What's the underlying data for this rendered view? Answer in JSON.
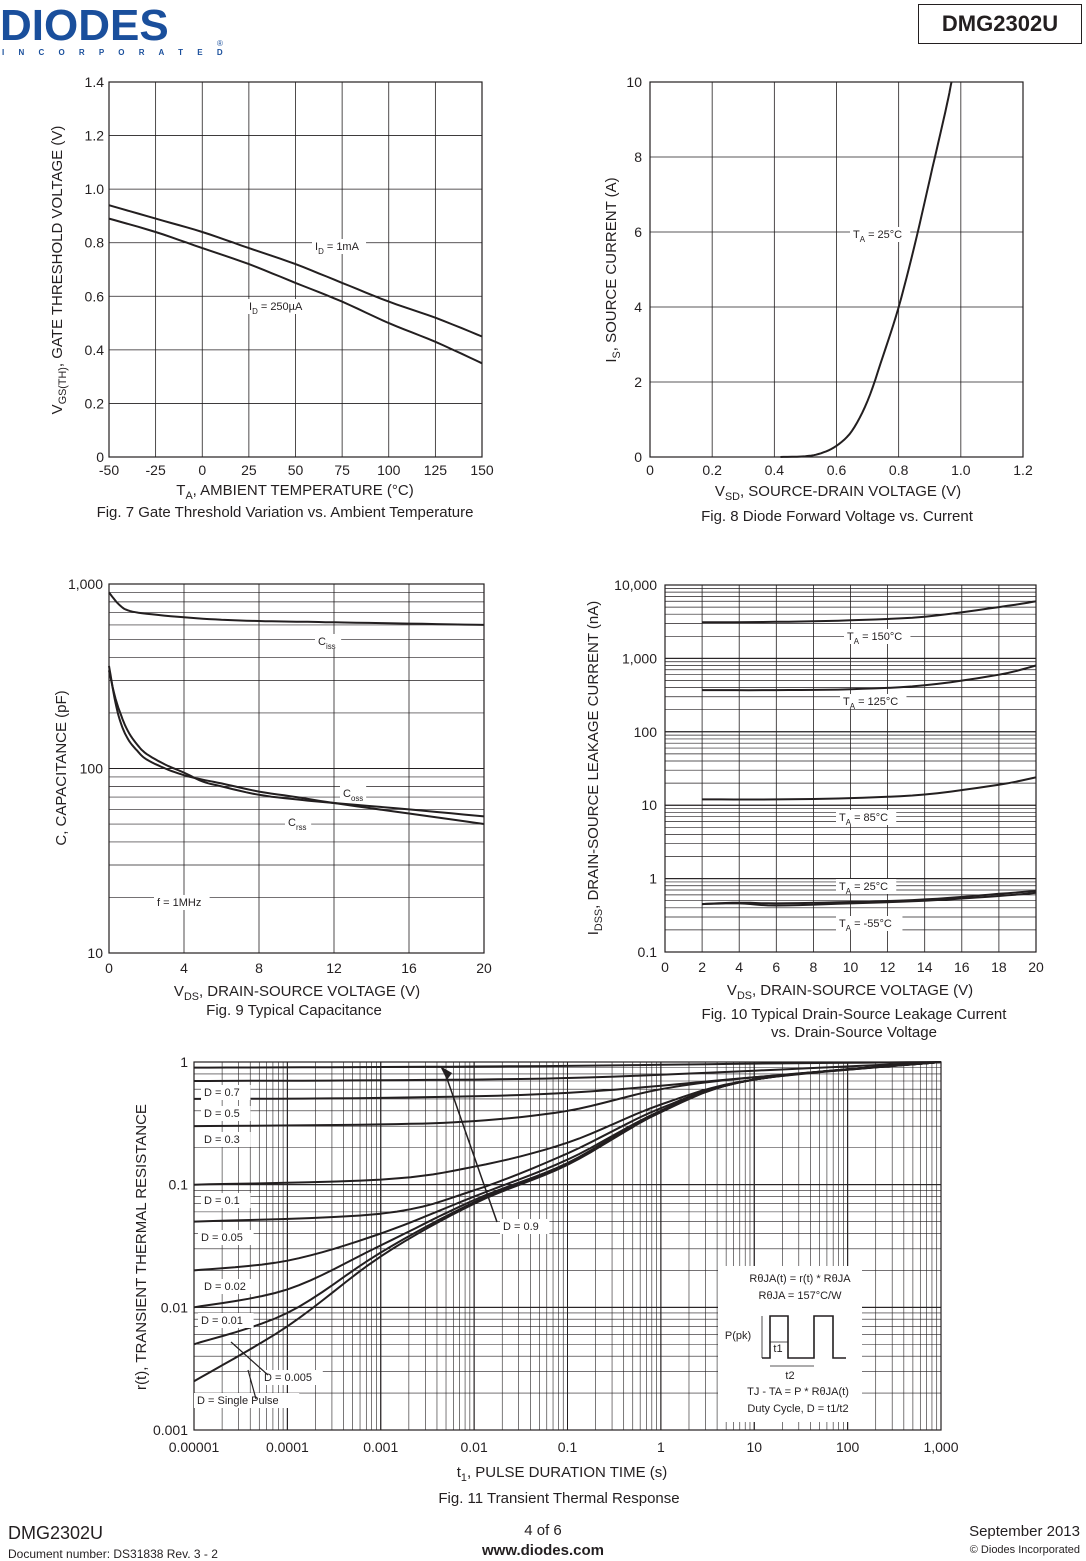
{
  "header": {
    "logo_text": "DIODES",
    "logo_sub": "I N C O R P O R A T E D",
    "logo_reg": "®",
    "part_number": "DMG2302U"
  },
  "footer": {
    "part": "DMG2302U",
    "doc_number": "Document number: DS31838 Rev. 3 - 2",
    "page": "4 of 6",
    "website": "www.diodes.com",
    "date": "September 2013",
    "copyright": "© Diodes Incorporated"
  },
  "chart_data": [
    {
      "id": "fig7",
      "type": "line",
      "caption": "Fig. 7 Gate Threshold Variation vs. Ambient Temperature",
      "xlabel": "Tₐ, AMBIENT TEMPERATURE (°C)",
      "xlabel_main": "T",
      "xlabel_sub": "A",
      "xlabel_rest": ", AMBIENT TEMPERATURE (°C)",
      "ylabel_main": "V",
      "ylabel_sub": "GS(TH)",
      "ylabel_rest": ", GATE THRESHOLD VOLTAGE (V)",
      "xlim": [
        -50,
        150
      ],
      "ylim": [
        0,
        1.4
      ],
      "xticks": [
        -50,
        -25,
        0,
        25,
        50,
        75,
        100,
        125,
        150
      ],
      "xtick_labels": [
        "-50",
        "-25",
        "0",
        "25",
        "50",
        "75",
        "100",
        "125",
        "150"
      ],
      "yticks": [
        0,
        0.2,
        0.4,
        0.6,
        0.8,
        1.0,
        1.2,
        1.4
      ],
      "ytick_labels": [
        "0",
        "0.2",
        "0.4",
        "0.6",
        "0.8",
        "1.0",
        "1.2",
        "1.4"
      ],
      "series": [
        {
          "name": "ID = 1mA",
          "label_main": "I",
          "label_sub": "D",
          "label_rest": " = 1mA",
          "x": [
            -50,
            -25,
            0,
            25,
            50,
            75,
            100,
            125,
            150
          ],
          "y": [
            0.94,
            0.89,
            0.84,
            0.78,
            0.72,
            0.65,
            0.58,
            0.52,
            0.45
          ]
        },
        {
          "name": "ID = 250µA",
          "label_main": "I",
          "label_sub": "D",
          "label_rest": " = 250µA",
          "x": [
            -50,
            -25,
            0,
            25,
            50,
            75,
            100,
            125,
            150
          ],
          "y": [
            0.89,
            0.84,
            0.78,
            0.72,
            0.65,
            0.58,
            0.5,
            0.43,
            0.35
          ]
        }
      ]
    },
    {
      "id": "fig8",
      "type": "line",
      "caption": "Fig. 8 Diode Forward Voltage vs. Current",
      "xlabel_main": "V",
      "xlabel_sub": "SD",
      "xlabel_rest": ", SOURCE-DRAIN VOLTAGE (V)",
      "ylabel_main": "I",
      "ylabel_sub": "S",
      "ylabel_rest": ", SOURCE CURRENT (A)",
      "xlim": [
        0,
        1.2
      ],
      "ylim": [
        0,
        10
      ],
      "xticks": [
        0,
        0.2,
        0.4,
        0.6,
        0.8,
        1.0,
        1.2
      ],
      "xtick_labels": [
        "0",
        "0.2",
        "0.4",
        "0.6",
        "0.8",
        "1.0",
        "1.2"
      ],
      "yticks": [
        0,
        2,
        4,
        6,
        8,
        10
      ],
      "ytick_labels": [
        "0",
        "2",
        "4",
        "6",
        "8",
        "10"
      ],
      "series": [
        {
          "name": "TA = 25°C",
          "label_main": "T",
          "label_sub": "A",
          "label_rest": " = 25°C",
          "x": [
            0.42,
            0.5,
            0.55,
            0.6,
            0.65,
            0.7,
            0.75,
            0.8,
            0.85,
            0.9,
            0.95,
            0.97
          ],
          "y": [
            0,
            0.02,
            0.1,
            0.3,
            0.7,
            1.5,
            2.7,
            4.0,
            5.6,
            7.4,
            9.2,
            10
          ]
        }
      ]
    },
    {
      "id": "fig9",
      "type": "line",
      "caption": "Fig. 9 Typical Capacitance",
      "xlabel_main": "V",
      "xlabel_sub": "DS",
      "xlabel_rest": ", DRAIN-SOURCE VOLTAGE (V)",
      "ylabel": "C, CAPACITANCE (pF)",
      "yscale": "log",
      "xlim": [
        0,
        20
      ],
      "ylim": [
        10,
        1000
      ],
      "xticks": [
        0,
        4,
        8,
        12,
        16,
        20
      ],
      "xtick_labels": [
        "0",
        "4",
        "8",
        "12",
        "16",
        "20"
      ],
      "ytick_labels": [
        "10",
        "100",
        "1,000"
      ],
      "note": "f = 1MHz",
      "series": [
        {
          "name": "Ciss",
          "label_main": "C",
          "label_sub": "iss",
          "x": [
            0,
            0.5,
            1,
            2,
            4,
            6,
            8,
            10,
            12,
            16,
            20
          ],
          "y": [
            900,
            780,
            720,
            690,
            660,
            640,
            630,
            625,
            620,
            610,
            600
          ]
        },
        {
          "name": "Coss",
          "label_main": "C",
          "label_sub": "oss",
          "x": [
            0,
            0.3,
            0.6,
            1,
            1.5,
            2,
            3,
            4,
            5,
            6,
            8,
            10,
            12,
            16,
            20
          ],
          "y": [
            340,
            250,
            200,
            160,
            135,
            120,
            105,
            95,
            85,
            80,
            72,
            68,
            65,
            60,
            55
          ]
        },
        {
          "name": "Crss",
          "label_main": "C",
          "label_sub": "rss",
          "x": [
            0,
            0.3,
            0.6,
            1,
            1.5,
            2,
            3,
            4,
            5,
            6,
            8,
            10,
            12,
            16,
            20
          ],
          "y": [
            360,
            240,
            180,
            145,
            125,
            112,
            100,
            92,
            87,
            83,
            75,
            70,
            65,
            57,
            50
          ]
        }
      ]
    },
    {
      "id": "fig10",
      "type": "line",
      "caption_line1": "Fig. 10 Typical Drain-Source Leakage Current",
      "caption_line2": "vs. Drain-Source Voltage",
      "xlabel_main": "V",
      "xlabel_sub": "DS",
      "xlabel_rest": ", DRAIN-SOURCE VOLTAGE (V)",
      "ylabel_main": "I",
      "ylabel_sub": "DSS",
      "ylabel_rest": ", DRAIN-SOURCE LEAKAGE CURRENT (nA)",
      "yscale": "log",
      "xlim": [
        0,
        20
      ],
      "ylim": [
        0.1,
        10000
      ],
      "xticks": [
        0,
        2,
        4,
        6,
        8,
        10,
        12,
        14,
        16,
        18,
        20
      ],
      "xtick_labels": [
        "0",
        "2",
        "4",
        "6",
        "8",
        "10",
        "12",
        "14",
        "16",
        "18",
        "20"
      ],
      "ytick_labels": [
        "0.1",
        "1",
        "10",
        "100",
        "1,000",
        "10,000"
      ],
      "series": [
        {
          "name": "TA = 150°C",
          "label_main": "T",
          "label_sub": "A",
          "label_rest": " = 150°C",
          "x": [
            2,
            6,
            10,
            14,
            18,
            20
          ],
          "y": [
            3100,
            3150,
            3300,
            3700,
            5000,
            6000
          ]
        },
        {
          "name": "TA = 125°C",
          "label_main": "T",
          "label_sub": "A",
          "label_rest": " = 125°C",
          "x": [
            2,
            6,
            10,
            14,
            18,
            20
          ],
          "y": [
            370,
            370,
            380,
            430,
            600,
            800
          ]
        },
        {
          "name": "TA = 85°C",
          "label_main": "T",
          "label_sub": "A",
          "label_rest": " = 85°C",
          "x": [
            2,
            6,
            10,
            14,
            18,
            20
          ],
          "y": [
            12,
            12,
            12.5,
            14,
            19,
            24
          ]
        },
        {
          "name": "TA = 25°C",
          "label_main": "T",
          "label_sub": "A",
          "label_rest": " = 25°C",
          "x": [
            2,
            4,
            6,
            10,
            14,
            18,
            20
          ],
          "y": [
            0.45,
            0.47,
            0.46,
            0.48,
            0.52,
            0.62,
            0.68
          ]
        },
        {
          "name": "TA = -55°C",
          "label_main": "T",
          "label_sub": "A",
          "label_rest": " = -55°C",
          "x": [
            2,
            4,
            6,
            10,
            14,
            18,
            20
          ],
          "y": [
            0.45,
            0.46,
            0.43,
            0.46,
            0.5,
            0.58,
            0.64
          ]
        }
      ]
    },
    {
      "id": "fig11",
      "type": "line",
      "caption": "Fig. 11 Transient Thermal Response",
      "xlabel_main": "t",
      "xlabel_sub": "1",
      "xlabel_rest": ", PULSE DURATION TIME (s)",
      "ylabel": "r(t), TRANSIENT THERMAL RESISTANCE",
      "xscale": "log",
      "yscale": "log",
      "xlim": [
        1e-05,
        1000
      ],
      "ylim": [
        0.001,
        1
      ],
      "xtick_labels": [
        "0.00001",
        "0.0001",
        "0.001",
        "0.01",
        "0.1",
        "1",
        "10",
        "100",
        "1,000"
      ],
      "ytick_labels": [
        "0.001",
        "0.01",
        "0.1",
        "1"
      ],
      "annotations": {
        "formula1": "RθJA(t) = r(t) * RθJA",
        "formula2": "RθJA = 157°C/W",
        "ppk": "P(pk)",
        "t1": "t1",
        "t2": "t2",
        "formula3": "TJ - TA = P * RθJA(t)",
        "formula4": "Duty Cycle, D = t1/t2"
      },
      "series": [
        {
          "name": "D = 0.9",
          "D": 0.9,
          "x": [
            1e-05,
            0.001,
            0.1,
            10,
            1000
          ],
          "y": [
            0.9,
            0.91,
            0.93,
            0.97,
            1
          ]
        },
        {
          "name": "D = 0.7",
          "D": 0.7,
          "x": [
            1e-05,
            0.001,
            0.1,
            10,
            1000
          ],
          "y": [
            0.7,
            0.71,
            0.74,
            0.85,
            1
          ]
        },
        {
          "name": "D = 0.5",
          "D": 0.5,
          "x": [
            1e-05,
            0.001,
            0.1,
            10,
            1000
          ],
          "y": [
            0.5,
            0.51,
            0.56,
            0.75,
            1
          ]
        },
        {
          "name": "D = 0.3",
          "D": 0.3,
          "x": [
            1e-05,
            0.001,
            0.01,
            0.1,
            1,
            10,
            1000
          ],
          "y": [
            0.3,
            0.31,
            0.33,
            0.4,
            0.6,
            0.75,
            1
          ]
        },
        {
          "name": "D = 0.1",
          "D": 0.1,
          "x": [
            1e-05,
            0.001,
            0.01,
            0.1,
            1,
            10,
            1000
          ],
          "y": [
            0.1,
            0.11,
            0.14,
            0.22,
            0.45,
            0.72,
            1
          ]
        },
        {
          "name": "D = 0.05",
          "D": 0.05,
          "x": [
            1e-05,
            0.001,
            0.01,
            0.1,
            1,
            10,
            1000
          ],
          "y": [
            0.05,
            0.058,
            0.09,
            0.18,
            0.42,
            0.72,
            1
          ]
        },
        {
          "name": "D = 0.02",
          "D": 0.02,
          "x": [
            1e-05,
            0.0001,
            0.001,
            0.01,
            0.1,
            1,
            10,
            1000
          ],
          "y": [
            0.02,
            0.024,
            0.04,
            0.08,
            0.16,
            0.4,
            0.72,
            1
          ]
        },
        {
          "name": "D = 0.01",
          "D": 0.01,
          "x": [
            1e-05,
            0.0001,
            0.001,
            0.01,
            0.1,
            1,
            10,
            1000
          ],
          "y": [
            0.01,
            0.014,
            0.032,
            0.075,
            0.15,
            0.4,
            0.72,
            1
          ]
        },
        {
          "name": "D = 0.005",
          "D": 0.005,
          "x": [
            1e-05,
            0.0001,
            0.001,
            0.01,
            0.1,
            1,
            10,
            1000
          ],
          "y": [
            0.005,
            0.009,
            0.028,
            0.072,
            0.15,
            0.4,
            0.72,
            1
          ]
        },
        {
          "name": "D = Single Pulse",
          "D": 0,
          "x": [
            1e-05,
            0.0001,
            0.001,
            0.01,
            0.1,
            1,
            10,
            1000
          ],
          "y": [
            0.0025,
            0.007,
            0.026,
            0.07,
            0.145,
            0.39,
            0.72,
            1
          ]
        }
      ]
    }
  ]
}
